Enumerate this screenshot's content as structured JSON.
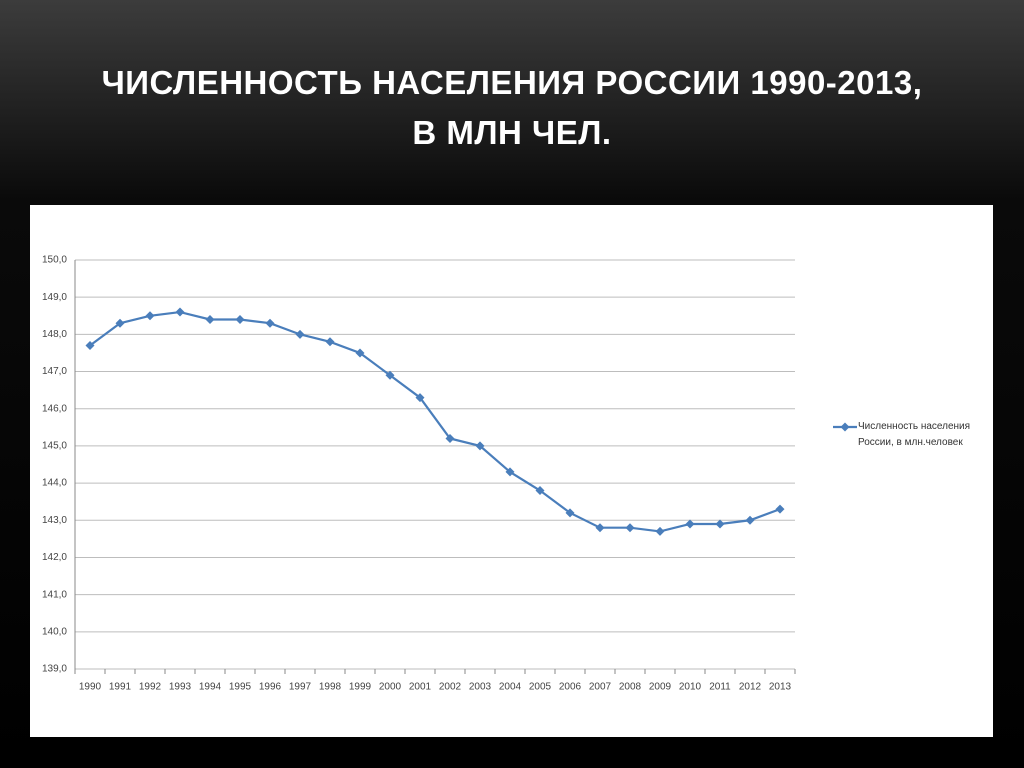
{
  "chart_data": {
    "type": "line",
    "title": "ЧИСЛЕННОСТЬ НАСЕЛЕНИЯ РОССИИ 1990-2013, В МЛН ЧЕЛ.",
    "categories": [
      "1990",
      "1991",
      "1992",
      "1993",
      "1994",
      "1995",
      "1996",
      "1997",
      "1998",
      "1999",
      "2000",
      "2001",
      "2002",
      "2003",
      "2004",
      "2005",
      "2006",
      "2007",
      "2008",
      "2009",
      "2010",
      "2011",
      "2012",
      "2013"
    ],
    "series": [
      {
        "name": "Численность населения России, в млн.человек",
        "color": "#4a7ebb",
        "values": [
          147.7,
          148.3,
          148.5,
          148.6,
          148.4,
          148.4,
          148.3,
          148.0,
          147.8,
          147.5,
          146.9,
          146.3,
          145.2,
          145.0,
          144.3,
          143.8,
          143.2,
          142.8,
          142.8,
          142.7,
          142.9,
          142.9,
          143.0,
          143.3
        ]
      }
    ],
    "ylim": [
      139,
      150
    ],
    "yticks": [
      {
        "value": 139,
        "label": "139,0"
      },
      {
        "value": 140,
        "label": "140,0"
      },
      {
        "value": 141,
        "label": "141,0"
      },
      {
        "value": 142,
        "label": "142,0"
      },
      {
        "value": 143,
        "label": "143,0"
      },
      {
        "value": 144,
        "label": "144,0"
      },
      {
        "value": 145,
        "label": "145,0"
      },
      {
        "value": 146,
        "label": "146,0"
      },
      {
        "value": 147,
        "label": "147,0"
      },
      {
        "value": 148,
        "label": "148,0"
      },
      {
        "value": 149,
        "label": "149,0"
      },
      {
        "value": 150,
        "label": "150,0"
      }
    ],
    "grid": true,
    "legend": "right"
  }
}
